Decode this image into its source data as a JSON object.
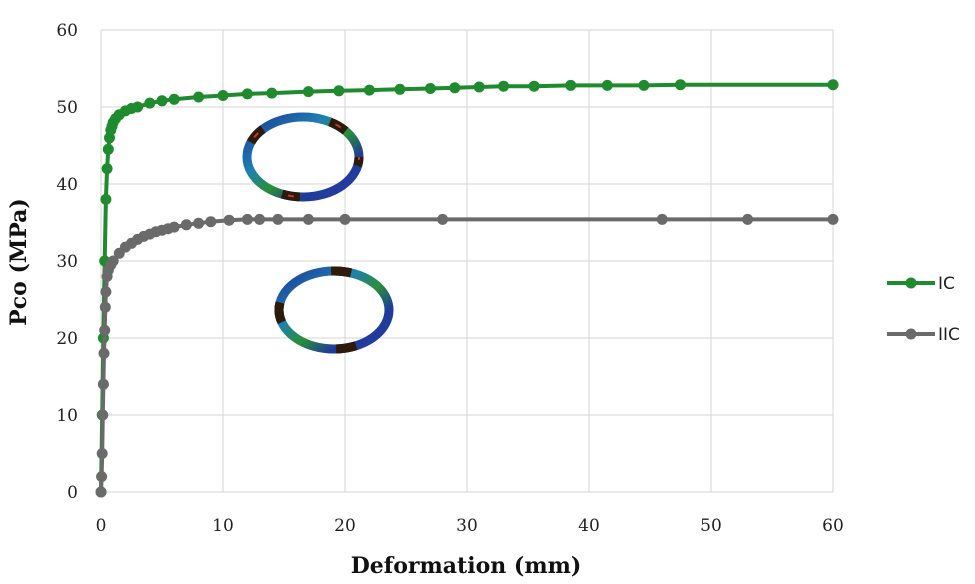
{
  "chart_data": {
    "type": "line",
    "xlabel": "Deformation (mm)",
    "ylabel": "Pco (MPa)",
    "xlim": [
      0,
      60
    ],
    "ylim": [
      0,
      60
    ],
    "xticks": [
      "0",
      "10",
      "20",
      "30",
      "40",
      "50",
      "60"
    ],
    "yticks": [
      "0",
      "10",
      "20",
      "30",
      "40",
      "50",
      "60"
    ],
    "grid": true,
    "legend_position": "right",
    "series": [
      {
        "name": "IC",
        "color": "#1f8a2e",
        "x": [
          0,
          0.1,
          0.2,
          0.3,
          0.4,
          0.5,
          0.6,
          0.7,
          0.8,
          0.9,
          1.0,
          1.2,
          1.5,
          2.0,
          2.5,
          3.0,
          4.0,
          5.0,
          6.0,
          8.0,
          10.0,
          12.0,
          14.0,
          17.0,
          19.5,
          22.0,
          24.5,
          27.0,
          29.0,
          31.0,
          33.0,
          35.5,
          38.5,
          41.5,
          44.5,
          47.5,
          60.0
        ],
        "y": [
          0,
          10,
          20,
          30,
          38,
          42,
          44.5,
          46,
          47,
          47.5,
          48,
          48.5,
          49,
          49.5,
          49.8,
          50,
          50.5,
          50.8,
          51,
          51.3,
          51.5,
          51.7,
          51.8,
          52,
          52.1,
          52.2,
          52.3,
          52.4,
          52.5,
          52.6,
          52.7,
          52.7,
          52.8,
          52.8,
          52.8,
          52.9,
          52.9
        ]
      },
      {
        "name": "IIC",
        "color": "#6a6a6a",
        "x": [
          0,
          0.05,
          0.1,
          0.15,
          0.2,
          0.25,
          0.3,
          0.35,
          0.4,
          0.5,
          0.6,
          0.8,
          1.0,
          1.5,
          2.0,
          2.5,
          3.0,
          3.5,
          4.0,
          4.5,
          5.0,
          5.5,
          6.0,
          7.0,
          8.0,
          9.0,
          10.5,
          12.0,
          13.0,
          14.5,
          17.0,
          20.0,
          28.0,
          46.0,
          53.0,
          60.0
        ],
        "y": [
          0,
          2,
          5,
          10,
          14,
          18,
          21,
          24,
          26,
          28,
          28.8,
          29.5,
          30,
          31,
          31.8,
          32.3,
          32.8,
          33.2,
          33.5,
          33.8,
          34,
          34.2,
          34.4,
          34.7,
          34.9,
          35.1,
          35.3,
          35.4,
          35.4,
          35.4,
          35.4,
          35.4,
          35.4,
          35.4,
          35.4,
          35.4
        ]
      }
    ]
  },
  "insets": [
    {
      "name": "ellipse-cross-section"
    },
    {
      "name": "ring-cross-section"
    }
  ]
}
